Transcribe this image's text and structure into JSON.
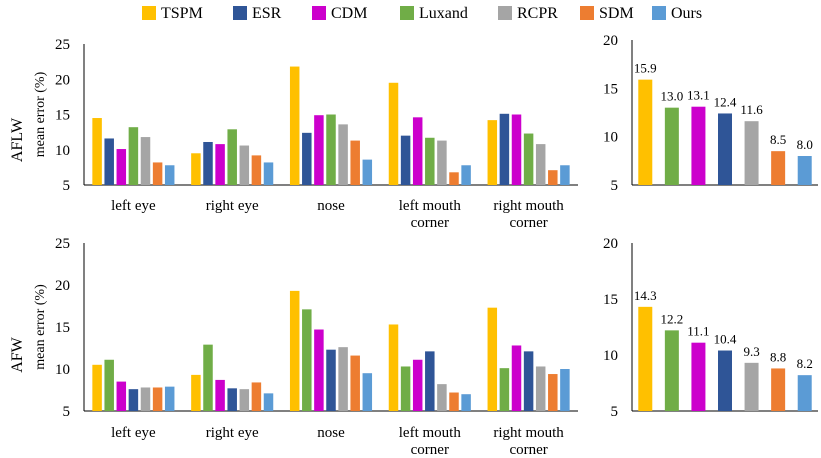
{
  "legend": {
    "items": [
      {
        "name": "TSPM",
        "color": "#FFC000"
      },
      {
        "name": "ESR",
        "color": "#2F5597"
      },
      {
        "name": "CDM",
        "color": "#CC00CC"
      },
      {
        "name": "Luxand",
        "color": "#70AD47"
      },
      {
        "name": "RCPR",
        "color": "#A5A5A5"
      },
      {
        "name": "SDM",
        "color": "#ED7D31"
      },
      {
        "name": "Ours",
        "color": "#5B9BD5"
      }
    ]
  },
  "row_labels": [
    "AFLW",
    "AFW"
  ],
  "chart_data": [
    {
      "type": "bar",
      "row": "AFLW",
      "ylabel": "mean error (%)",
      "ylim": [
        5,
        25
      ],
      "yticks": [
        5,
        10,
        15,
        20,
        25
      ],
      "categories": [
        "left eye",
        "right eye",
        "nose",
        "left mouth corner",
        "right mouth corner"
      ],
      "series": [
        {
          "name": "TSPM",
          "values": [
            14.5,
            9.5,
            21.8,
            19.5,
            14.2
          ]
        },
        {
          "name": "ESR",
          "values": [
            11.6,
            11.1,
            12.4,
            12.0,
            15.1
          ]
        },
        {
          "name": "CDM",
          "values": [
            10.1,
            10.8,
            14.9,
            14.6,
            15.0
          ]
        },
        {
          "name": "Luxand",
          "values": [
            13.2,
            12.9,
            15.0,
            11.7,
            12.3
          ]
        },
        {
          "name": "RCPR",
          "values": [
            11.8,
            10.6,
            13.6,
            11.3,
            10.8
          ]
        },
        {
          "name": "SDM",
          "values": [
            8.2,
            9.2,
            11.3,
            6.8,
            7.1
          ]
        },
        {
          "name": "Ours",
          "values": [
            7.8,
            8.2,
            8.6,
            7.8,
            7.8
          ]
        }
      ]
    },
    {
      "type": "bar",
      "row": "AFLW",
      "ylim": [
        5,
        20
      ],
      "yticks": [
        5,
        10,
        15,
        20
      ],
      "categories": [
        "TSPM",
        "Luxand",
        "CDM",
        "ESR",
        "RCPR",
        "SDM",
        "Ours"
      ],
      "values": [
        15.9,
        13.0,
        13.1,
        12.4,
        11.6,
        8.5,
        8.0
      ],
      "data_labels": [
        "15.9",
        "13.0",
        "13.1",
        "12.4",
        "11.6",
        "8.5",
        "8.0"
      ]
    },
    {
      "type": "bar",
      "row": "AFW",
      "ylabel": "mean error (%)",
      "ylim": [
        5,
        25
      ],
      "yticks": [
        5,
        10,
        15,
        20,
        25
      ],
      "categories": [
        "left eye",
        "right eye",
        "nose",
        "left mouth corner",
        "right mouth corner"
      ],
      "series": [
        {
          "name": "TSPM",
          "values": [
            10.5,
            9.3,
            19.3,
            15.3,
            17.3
          ]
        },
        {
          "name": "Luxand",
          "values": [
            11.1,
            12.9,
            17.1,
            10.3,
            10.1
          ]
        },
        {
          "name": "CDM",
          "values": [
            8.5,
            8.7,
            14.7,
            11.1,
            12.8
          ]
        },
        {
          "name": "ESR",
          "values": [
            7.6,
            7.7,
            12.3,
            12.1,
            12.1
          ]
        },
        {
          "name": "RCPR",
          "values": [
            7.8,
            7.6,
            12.6,
            8.2,
            10.3
          ]
        },
        {
          "name": "SDM",
          "values": [
            7.8,
            8.4,
            11.6,
            7.2,
            9.4
          ]
        },
        {
          "name": "Ours",
          "values": [
            7.9,
            7.1,
            9.5,
            7.0,
            10.0
          ]
        }
      ]
    },
    {
      "type": "bar",
      "row": "AFW",
      "ylim": [
        5,
        20
      ],
      "yticks": [
        5,
        10,
        15,
        20
      ],
      "categories": [
        "TSPM",
        "Luxand",
        "CDM",
        "ESR",
        "RCPR",
        "SDM",
        "Ours"
      ],
      "values": [
        14.3,
        12.2,
        11.1,
        10.4,
        9.3,
        8.8,
        8.2
      ],
      "data_labels": [
        "14.3",
        "12.2",
        "11.1",
        "10.4",
        "9.3",
        "8.8",
        "8.2"
      ]
    }
  ]
}
